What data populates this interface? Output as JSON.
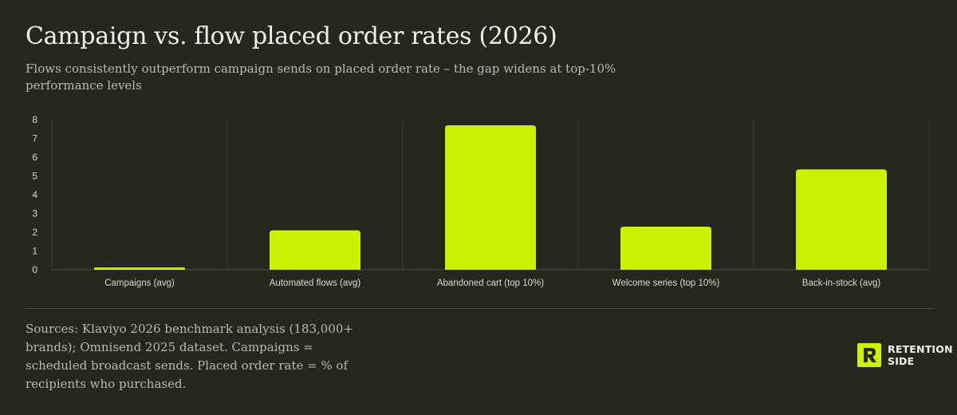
{
  "title": "Campaign vs. flow placed order rates (2026)",
  "subtitle": "Flows consistently outperform campaign sends on placed order rate – the gap widens at top-10% performance levels",
  "chart_data": {
    "type": "bar",
    "categories": [
      "Campaigns (avg)",
      "Automated flows (avg)",
      "Abandoned cart (top 10%)",
      "Welcome series (top 10%)",
      "Back-in-stock (avg)"
    ],
    "values": [
      0.12,
      2.1,
      7.7,
      2.3,
      5.35
    ],
    "yticks": [
      "0",
      "1",
      "2",
      "3",
      "4",
      "5",
      "6",
      "7",
      "8"
    ],
    "ylim": [
      0,
      8
    ],
    "grid": "vertical separators",
    "bar_color": "#ccf200"
  },
  "footnote": "Sources: Klaviyo 2026 benchmark analysis (183,000+ brands); Omnisend 2025 dataset. Campaigns = scheduled broadcast sends. Placed order rate = % of recipients who purchased.",
  "logo": {
    "line1": "RETENTION",
    "line2": "SIDE",
    "mark_letter": "R",
    "mark_color": "#ccf200"
  },
  "colors": {
    "background": "#262820",
    "accent": "#ccf200"
  }
}
